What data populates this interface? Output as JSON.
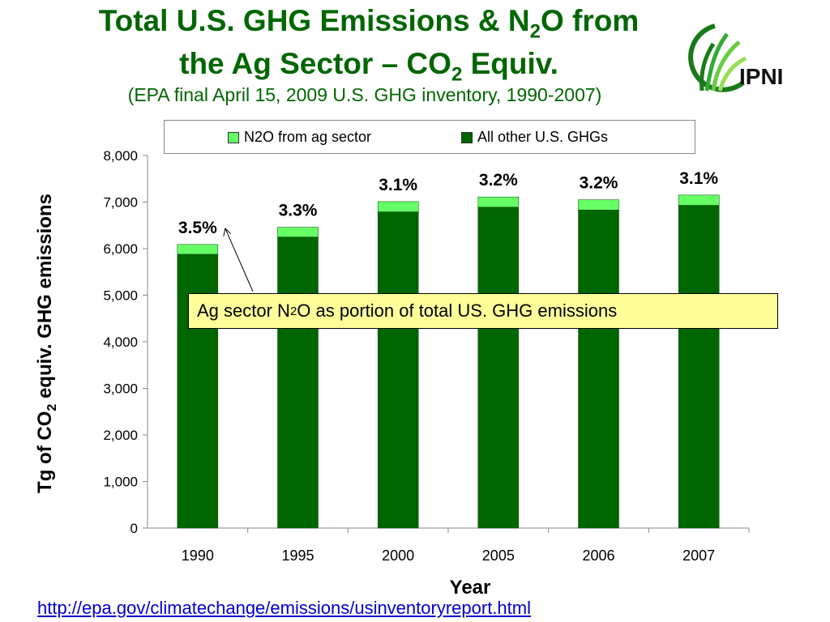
{
  "header": {
    "title_line1_a": "Total U.S. GHG Emissions & N",
    "title_line1_sub": "2",
    "title_line1_b": "O from",
    "title_line2_a": "the Ag Sector – CO",
    "title_line2_sub": "2",
    "title_line2_b": " Equiv.",
    "subtitle": "(EPA final April 15, 2009  U.S. GHG inventory, 1990-2007)"
  },
  "logo": {
    "text": "IPNI",
    "icon": "wheat-leaves-logo-icon"
  },
  "legend": {
    "placement": "top",
    "items": [
      {
        "label": "N2O from ag sector",
        "color": "#66ff66"
      },
      {
        "label": "All other  U.S. GHGs",
        "color": "#006600"
      }
    ]
  },
  "axes": {
    "ylabel_a": "Tg  of  CO",
    "ylabel_sub": "2",
    "ylabel_b": " equiv. GHG emissions",
    "xlabel": "Year"
  },
  "callout": {
    "text_a": "Ag sector N",
    "text_sub": "2",
    "text_b": "O as portion of total US. GHG emissions"
  },
  "footer": {
    "url": "http://epa.gov/climatechange/emissions/usinventoryreport.html"
  },
  "chart_data": {
    "type": "bar",
    "stacked": true,
    "categories": [
      "1990",
      "1995",
      "2000",
      "2005",
      "2006",
      "2007"
    ],
    "series": [
      {
        "name": "All other  U.S. GHGs",
        "color": "#006600",
        "values": [
          5880,
          6250,
          6790,
          6890,
          6830,
          6930
        ]
      },
      {
        "name": "N2O from ag sector",
        "color": "#66ff66",
        "values": [
          210,
          210,
          220,
          220,
          220,
          220
        ]
      }
    ],
    "data_labels": [
      "3.5%",
      "3.3%",
      "3.1%",
      "3.2%",
      "3.2%",
      "3.1%"
    ],
    "ylim": [
      0,
      8000
    ],
    "yticks": [
      0,
      1000,
      2000,
      3000,
      4000,
      5000,
      6000,
      7000,
      8000
    ],
    "ytick_labels": [
      "0",
      "1,000",
      "2,000",
      "3,000",
      "4,000",
      "5,000",
      "6,000",
      "7,000",
      "8,000"
    ],
    "grid": false
  }
}
